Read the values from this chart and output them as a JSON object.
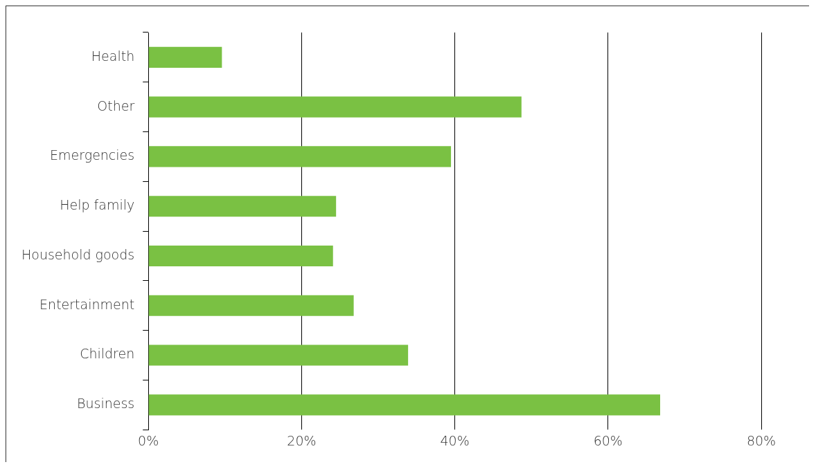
{
  "chart_data": {
    "type": "bar",
    "orientation": "horizontal",
    "categories": [
      "Health",
      "Other",
      "Emergencies",
      "Help family",
      "Household goods",
      "Entertainment",
      "Children",
      "Business"
    ],
    "values": [
      9.6,
      48.7,
      39.5,
      24.5,
      24.1,
      26.8,
      33.9,
      66.8
    ],
    "color": "#7ac143",
    "xlim": [
      0,
      80
    ],
    "xticks": [
      {
        "value": 0,
        "label": "0%"
      },
      {
        "value": 20,
        "label": "20%"
      },
      {
        "value": 40,
        "label": "40%"
      },
      {
        "value": 60,
        "label": "60%"
      },
      {
        "value": 80,
        "label": "80%"
      }
    ],
    "grid": "x",
    "legend": false
  }
}
